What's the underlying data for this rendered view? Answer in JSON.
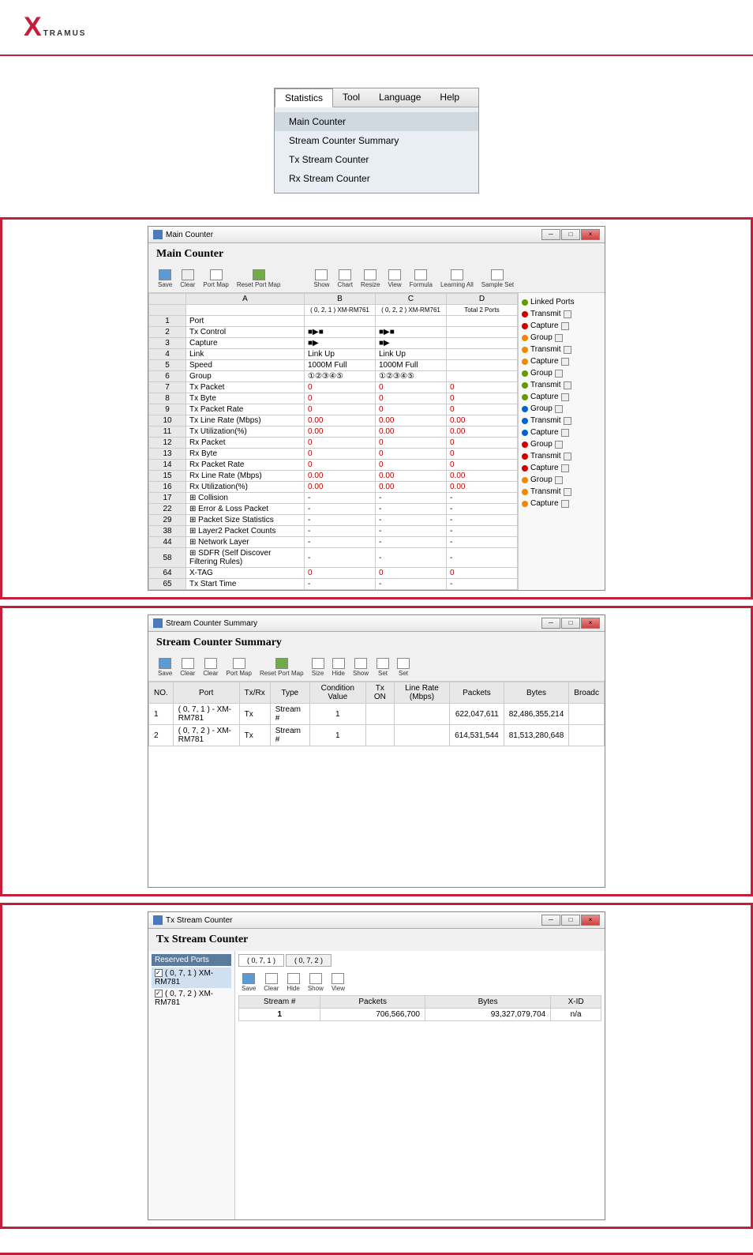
{
  "logo": {
    "x": "X",
    "rest": "TRAMUS"
  },
  "menu": {
    "tabs": [
      "Statistics",
      "Tool",
      "Language",
      "Help"
    ],
    "items": [
      "Main Counter",
      "Stream Counter Summary",
      "Tx Stream Counter",
      "Rx Stream Counter"
    ]
  },
  "mainCounter": {
    "title": "Main Counter",
    "heading": "Main Counter",
    "toolbar": [
      "Save",
      "Clear",
      "Port Map",
      "Reset Port Map",
      "Show",
      "Chart",
      "Resize",
      "View",
      "Formula",
      "Learning All",
      "Sample Set"
    ],
    "headers": {
      "a": "A",
      "b": "B",
      "c": "C",
      "d": "D"
    },
    "headerRow": {
      "b": "( 0, 2, 1 )\nXM-RM761",
      "c": "( 0, 2, 2 )\nXM-RM761",
      "d": "Total 2 Ports"
    },
    "rows": [
      {
        "n": "1",
        "a": "Port",
        "b": "",
        "c": "",
        "d": ""
      },
      {
        "n": "2",
        "a": "Tx Control",
        "b": "■▶■",
        "c": "■▶■",
        "d": ""
      },
      {
        "n": "3",
        "a": "Capture",
        "b": "■▶",
        "c": "■▶",
        "d": ""
      },
      {
        "n": "4",
        "a": "Link",
        "b": "Link Up",
        "c": "Link Up",
        "d": ""
      },
      {
        "n": "5",
        "a": "Speed",
        "b": "1000M Full",
        "c": "1000M Full",
        "d": ""
      },
      {
        "n": "6",
        "a": "Group",
        "b": "①②③④⑤",
        "c": "①②③④⑤",
        "d": ""
      },
      {
        "n": "7",
        "a": "Tx Packet",
        "b": "0",
        "c": "0",
        "d": "0"
      },
      {
        "n": "8",
        "a": "Tx Byte",
        "b": "0",
        "c": "0",
        "d": "0"
      },
      {
        "n": "9",
        "a": "Tx Packet Rate",
        "b": "0",
        "c": "0",
        "d": "0"
      },
      {
        "n": "10",
        "a": "Tx Line Rate (Mbps)",
        "b": "0.00",
        "c": "0.00",
        "d": "0.00"
      },
      {
        "n": "11",
        "a": "Tx Utilization(%)",
        "b": "0.00",
        "c": "0.00",
        "d": "0.00"
      },
      {
        "n": "12",
        "a": "Rx Packet",
        "b": "0",
        "c": "0",
        "d": "0"
      },
      {
        "n": "13",
        "a": "Rx Byte",
        "b": "0",
        "c": "0",
        "d": "0"
      },
      {
        "n": "14",
        "a": "Rx Packet Rate",
        "b": "0",
        "c": "0",
        "d": "0"
      },
      {
        "n": "15",
        "a": "Rx Line Rate (Mbps)",
        "b": "0.00",
        "c": "0.00",
        "d": "0.00"
      },
      {
        "n": "16",
        "a": "Rx Utilization(%)",
        "b": "0.00",
        "c": "0.00",
        "d": "0.00"
      },
      {
        "n": "17",
        "a": "⊞ Collision",
        "b": "-",
        "c": "-",
        "d": "-"
      },
      {
        "n": "22",
        "a": "⊞ Error & Loss Packet",
        "b": "-",
        "c": "-",
        "d": "-"
      },
      {
        "n": "29",
        "a": "⊞ Packet Size Statistics",
        "b": "-",
        "c": "-",
        "d": "-"
      },
      {
        "n": "38",
        "a": "⊞ Layer2 Packet Counts",
        "b": "-",
        "c": "-",
        "d": "-"
      },
      {
        "n": "44",
        "a": "⊞ Network Layer",
        "b": "-",
        "c": "-",
        "d": "-"
      },
      {
        "n": "58",
        "a": "⊞ SDFR (Self Discover Filtering Rules)",
        "b": "-",
        "c": "-",
        "d": "-"
      },
      {
        "n": "64",
        "a": "X-TAG",
        "b": "0",
        "c": "0",
        "d": "0"
      },
      {
        "n": "65",
        "a": "Tx Start Time",
        "b": "-",
        "c": "-",
        "d": "-"
      }
    ],
    "side": {
      "linkedPorts": "Linked Ports",
      "groups": [
        "Transmit",
        "Capture",
        "Group",
        "Transmit",
        "Capture",
        "Group",
        "Transmit",
        "Capture",
        "Group",
        "Transmit",
        "Capture",
        "Group",
        "Transmit",
        "Capture",
        "Group",
        "Transmit",
        "Capture"
      ]
    }
  },
  "summary": {
    "title": "Stream Counter Summary",
    "heading": "Stream Counter Summary",
    "toolbar": [
      "Save",
      "Clear",
      "Clear",
      "Port Map",
      "Reset Port Map",
      "Size",
      "Hide",
      "Show",
      "Set",
      "Set"
    ],
    "headers": [
      "NO.",
      "Port",
      "Tx/Rx",
      "Type",
      "Condition Value",
      "Tx ON",
      "Line Rate (Mbps)",
      "Packets",
      "Bytes",
      "Broadc"
    ],
    "rows": [
      {
        "no": "1",
        "port": "( 0, 7, 1 ) - XM-RM781",
        "txrx": "Tx",
        "type": "Stream #",
        "val": "1",
        "on": "",
        "rate": "",
        "packets": "622,047,611",
        "bytes": "82,486,355,214"
      },
      {
        "no": "2",
        "port": "( 0, 7, 2 ) - XM-RM781",
        "txrx": "Tx",
        "type": "Stream #",
        "val": "1",
        "on": "",
        "rate": "",
        "packets": "614,531,544",
        "bytes": "81,513,280,648"
      }
    ]
  },
  "txStream": {
    "title": "Tx Stream Counter",
    "heading": "Tx Stream Counter",
    "treeHeader": "Reserved Ports",
    "treeItems": [
      "( 0, 7, 1 ) XM-RM781",
      "( 0, 7, 2 ) XM-RM781"
    ],
    "tabs": [
      "( 0, 7, 1 )",
      "( 0, 7, 2 )"
    ],
    "toolbar": [
      "Save",
      "Clear",
      "Hide",
      "Show",
      "View"
    ],
    "headers": [
      "Stream #",
      "Packets",
      "Bytes",
      "X-ID"
    ],
    "row": {
      "stream": "1",
      "packets": "706,566,700",
      "bytes": "93,327,079,704",
      "xid": "n/a"
    }
  }
}
